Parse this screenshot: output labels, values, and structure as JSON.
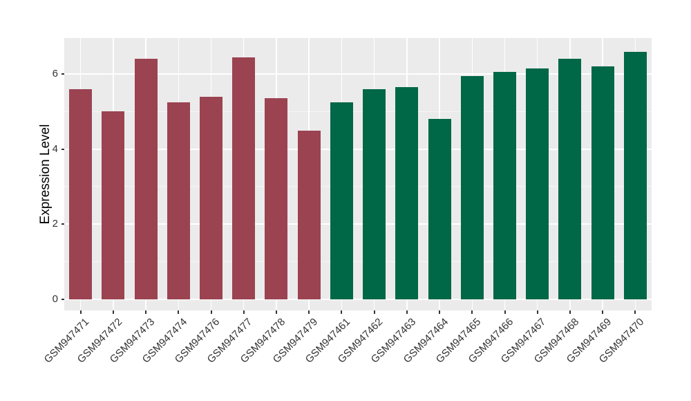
{
  "figure": {
    "background": "#FFFFFF",
    "panel_bg": "#EBEBEB",
    "grid_major_color": "#FFFFFF",
    "grid_minor_color": "rgba(255,255,255,0.55)",
    "axis_tick_color": "#333333",
    "axis_text_color": "#333333",
    "axis_title_color": "#000000",
    "group1_bar_color": "#9B4351",
    "group2_bar_color": "#006747"
  },
  "chart_data": {
    "type": "bar",
    "title": "",
    "xlabel": "",
    "ylabel": "Expression Level",
    "ylim": [
      -0.3,
      6.96
    ],
    "yticks": [
      0,
      2,
      4,
      6
    ],
    "yminor_gridlines": [
      1,
      3,
      5
    ],
    "grid": "on",
    "legend_position": "none",
    "x_label_rotation_deg": 45,
    "bar_width_fraction": 0.7,
    "categories": [
      "GSM947471",
      "GSM947472",
      "GSM947473",
      "GSM947474",
      "GSM947476",
      "GSM947477",
      "GSM947478",
      "GSM947479",
      "GSM947461",
      "GSM947462",
      "GSM947463",
      "GSM947464",
      "GSM947465",
      "GSM947466",
      "GSM947467",
      "GSM947468",
      "GSM947469",
      "GSM947470"
    ],
    "values": [
      5.6,
      5.0,
      6.4,
      5.25,
      5.4,
      6.45,
      5.35,
      4.5,
      5.25,
      5.6,
      5.65,
      4.8,
      5.95,
      6.05,
      6.15,
      6.4,
      6.2,
      6.6
    ],
    "bar_colors": [
      "#9B4351",
      "#9B4351",
      "#9B4351",
      "#9B4351",
      "#9B4351",
      "#9B4351",
      "#9B4351",
      "#9B4351",
      "#006747",
      "#006747",
      "#006747",
      "#006747",
      "#006747",
      "#006747",
      "#006747",
      "#006747",
      "#006747",
      "#006747"
    ]
  }
}
